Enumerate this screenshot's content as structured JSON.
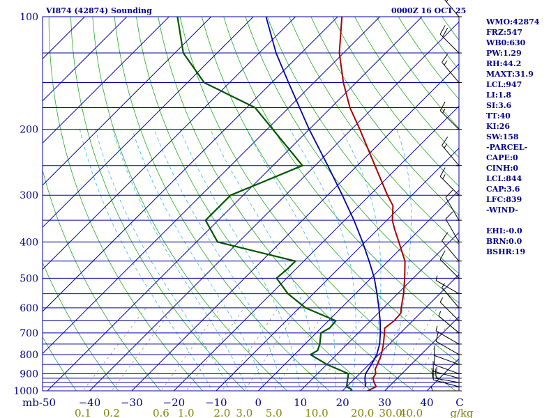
{
  "header": {
    "station": "VI874 (42874) Sounding",
    "time": "0000Z 16 OCT 25"
  },
  "indices": [
    "WMO:42874",
    "FRZ:547",
    "WB0:630",
    "PW:1.29",
    "RH:44.2",
    "MAXT:31.9",
    "LCL:947",
    "LI:1.8",
    "SI:3.6",
    "TT:40",
    "KI:26",
    "SW:158",
    "-PARCEL-",
    "CAPE:0",
    "CINH:0",
    "LCL:844",
    "CAP:3.6",
    "LFC:839",
    "-WIND-",
    "",
    "EHI:-0.0",
    "BRN:0.0",
    "BSHR:19"
  ],
  "chart_data": {
    "type": "line",
    "diagram": "skew-T log-P",
    "x_unit_label": "C",
    "y_unit_label": "mb",
    "pressure_range": [
      1000,
      100
    ],
    "temperature_range": [
      -50,
      50
    ],
    "pressure_labels": [
      100,
      200,
      300,
      400,
      500,
      600,
      700,
      800,
      900,
      1000
    ],
    "pressure_label_text": [
      "100",
      "200",
      "300",
      "400",
      "500",
      "600",
      "700",
      "800",
      "900",
      "1000"
    ],
    "temperature_labels": [
      -50,
      -40,
      -30,
      -20,
      -10,
      0,
      10,
      20,
      30,
      40
    ],
    "temperature_label_text": [
      "-50",
      "−40",
      "−30",
      "−20",
      "−10",
      "0",
      "10",
      "20",
      "30",
      "40"
    ],
    "mixing_ratio_unit_label": "g/kg",
    "mixing_ratio_labels": [
      "0.1",
      "0.2",
      "0.6",
      "1.0",
      "2.0",
      "3.0",
      "5.0",
      "10.0",
      "20.0",
      "30.0",
      "40.0"
    ],
    "mixing_ratio_values": [
      0.1,
      0.2,
      0.6,
      1.0,
      2.0,
      3.0,
      5.0,
      10.0,
      20.0,
      30.0,
      40.0
    ],
    "isobars": [
      100,
      125,
      150,
      175,
      200,
      250,
      300,
      350,
      400,
      450,
      500,
      550,
      600,
      650,
      700,
      750,
      800,
      850,
      900,
      925,
      950,
      975,
      1000
    ],
    "temperature": [
      [
        1000,
        25.9
      ],
      [
        975,
        27.0
      ],
      [
        950,
        25.5
      ],
      [
        925,
        24.2
      ],
      [
        900,
        23.8
      ],
      [
        875,
        22.6
      ],
      [
        850,
        22.0
      ],
      [
        800,
        20.6
      ],
      [
        750,
        18.6
      ],
      [
        700,
        16.2
      ],
      [
        680,
        15.1
      ],
      [
        650,
        15.6
      ],
      [
        620,
        15.4
      ],
      [
        600,
        14.2
      ],
      [
        550,
        11.4
      ],
      [
        500,
        8.0
      ],
      [
        450,
        4.0
      ],
      [
        400,
        -2.0
      ],
      [
        370,
        -6.0
      ],
      [
        350,
        -8.7
      ],
      [
        320,
        -12.0
      ],
      [
        300,
        -15.8
      ],
      [
        250,
        -25.8
      ],
      [
        200,
        -38.0
      ],
      [
        175,
        -45.5
      ],
      [
        150,
        -53.0
      ],
      [
        125,
        -61.0
      ],
      [
        100,
        -69.0
      ]
    ],
    "dewpoint": [
      [
        1000,
        22.0
      ],
      [
        990,
        21.7
      ],
      [
        975,
        20.0
      ],
      [
        900,
        17.3
      ],
      [
        850,
        10.0
      ],
      [
        800,
        3.8
      ],
      [
        780,
        4.5
      ],
      [
        750,
        3.5
      ],
      [
        700,
        1.1
      ],
      [
        680,
        2.0
      ],
      [
        650,
        1.8
      ],
      [
        600,
        -8.5
      ],
      [
        550,
        -16.0
      ],
      [
        500,
        -22.4
      ],
      [
        470,
        -22.0
      ],
      [
        450,
        -22.0
      ],
      [
        400,
        -45.0
      ],
      [
        350,
        -53.0
      ],
      [
        300,
        -53.0
      ],
      [
        250,
        -43.0
      ],
      [
        175,
        -68.0
      ],
      [
        150,
        -86.0
      ],
      [
        125,
        -98.0
      ],
      [
        100,
        -108.0
      ]
    ],
    "parcel": [
      [
        975,
        24.5
      ],
      [
        950,
        23.4
      ],
      [
        925,
        22.3
      ],
      [
        900,
        21.4
      ],
      [
        875,
        21.0
      ],
      [
        850,
        20.6
      ],
      [
        800,
        19.5
      ],
      [
        750,
        17.7
      ],
      [
        700,
        15.2
      ],
      [
        650,
        12.3
      ],
      [
        600,
        8.9
      ],
      [
        550,
        5.1
      ],
      [
        500,
        0.8
      ],
      [
        450,
        -4.5
      ],
      [
        400,
        -10.6
      ],
      [
        350,
        -17.8
      ],
      [
        300,
        -26.5
      ],
      [
        250,
        -37.0
      ],
      [
        200,
        -50.0
      ],
      [
        150,
        -66.0
      ],
      [
        125,
        -76.0
      ],
      [
        100,
        -87.0
      ]
    ],
    "wind_barbs": [
      [
        1000,
        270,
        5
      ],
      [
        975,
        285,
        10
      ],
      [
        950,
        280,
        20
      ],
      [
        925,
        285,
        15
      ],
      [
        900,
        290,
        10
      ],
      [
        850,
        290,
        10
      ],
      [
        800,
        300,
        10
      ],
      [
        750,
        300,
        5
      ],
      [
        700,
        310,
        5
      ],
      [
        650,
        315,
        5
      ],
      [
        600,
        320,
        5
      ],
      [
        550,
        300,
        5
      ],
      [
        500,
        315,
        10
      ],
      [
        450,
        320,
        10
      ],
      [
        400,
        330,
        10
      ],
      [
        350,
        330,
        10
      ],
      [
        300,
        315,
        15
      ],
      [
        250,
        320,
        15
      ],
      [
        200,
        315,
        15
      ],
      [
        150,
        320,
        15
      ],
      [
        125,
        315,
        20
      ],
      [
        100,
        320,
        25
      ]
    ],
    "colors": {
      "temperature": "#aa0000",
      "dewpoint": "#005500",
      "parcel": "#0000aa",
      "isobar": "#0000aa",
      "isotherm": "#0000aa",
      "dry_adiabat": "#22aa22",
      "moist_adiabat": "#33bbdd",
      "mixing_ratio": "#888844",
      "wind": "#000000",
      "text": "#000088",
      "mixing_label": "#808000"
    }
  }
}
